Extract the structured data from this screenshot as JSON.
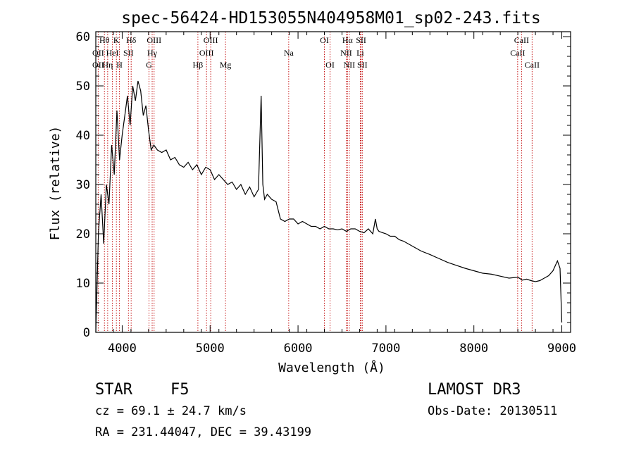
{
  "chart_data": {
    "type": "line",
    "title": "spec-56424-HD153055N404958M01_sp02-243.fits",
    "xlabel": "Wavelength (Å)",
    "ylabel": "Flux (relative)",
    "xlim": [
      3700,
      9100
    ],
    "ylim": [
      0,
      61
    ],
    "xticks": [
      4000,
      5000,
      6000,
      7000,
      8000,
      9000
    ],
    "yticks": [
      0,
      10,
      20,
      30,
      40,
      50,
      60
    ],
    "series": [
      {
        "name": "flux",
        "x": [
          3700,
          3730,
          3760,
          3790,
          3820,
          3850,
          3880,
          3910,
          3940,
          3970,
          4000,
          4030,
          4060,
          4090,
          4120,
          4150,
          4180,
          4210,
          4240,
          4270,
          4300,
          4330,
          4360,
          4400,
          4450,
          4500,
          4550,
          4600,
          4650,
          4700,
          4750,
          4800,
          4850,
          4900,
          4950,
          5000,
          5050,
          5100,
          5150,
          5200,
          5250,
          5300,
          5350,
          5400,
          5450,
          5500,
          5550,
          5580,
          5600,
          5620,
          5650,
          5700,
          5750,
          5800,
          5850,
          5900,
          5950,
          6000,
          6050,
          6100,
          6150,
          6200,
          6250,
          6300,
          6350,
          6400,
          6450,
          6500,
          6550,
          6600,
          6650,
          6700,
          6750,
          6800,
          6850,
          6880,
          6900,
          6920,
          6950,
          7000,
          7050,
          7100,
          7150,
          7200,
          7300,
          7400,
          7500,
          7600,
          7700,
          7800,
          7900,
          8000,
          8100,
          8200,
          8300,
          8400,
          8500,
          8550,
          8600,
          8650,
          8700,
          8750,
          8800,
          8850,
          8900,
          8950,
          8980,
          9000
        ],
        "y": [
          0,
          20,
          28,
          18,
          30,
          26,
          38,
          32,
          45,
          35,
          40,
          44,
          48,
          42,
          50,
          47,
          51,
          49,
          44,
          46,
          41,
          37,
          38,
          37,
          36.5,
          37,
          35,
          35.5,
          34,
          33.5,
          34.5,
          33,
          34,
          32,
          33.5,
          33,
          31,
          32,
          31,
          30,
          30.5,
          29,
          30,
          28,
          29.5,
          27.5,
          29,
          48,
          30,
          27,
          28,
          27,
          26.5,
          23,
          22.5,
          23,
          23,
          22,
          22.5,
          22,
          21.5,
          21.5,
          21,
          21.5,
          21,
          21,
          20.8,
          21,
          20.5,
          21,
          21,
          20.5,
          20.2,
          21,
          20,
          23,
          21,
          20.5,
          20.3,
          20,
          19.5,
          19.5,
          18.8,
          18.5,
          17.5,
          16.5,
          15.8,
          15,
          14.2,
          13.6,
          13,
          12.5,
          12,
          11.8,
          11.4,
          11,
          11.2,
          10.6,
          10.8,
          10.5,
          10.3,
          10.5,
          11,
          11.5,
          12.5,
          14.5,
          13,
          2
        ]
      }
    ],
    "lines": [
      {
        "label": "Hθ",
        "wl": 3798,
        "row": 0
      },
      {
        "label": "OII",
        "wl": 3727,
        "row": 1
      },
      {
        "label": "OII",
        "wl": 3727,
        "row": 2
      },
      {
        "label": "Hη",
        "wl": 3835,
        "row": 2
      },
      {
        "label": "HeI",
        "wl": 3889,
        "row": 1
      },
      {
        "label": "K",
        "wl": 3934,
        "row": 0
      },
      {
        "label": "H",
        "wl": 3969,
        "row": 2
      },
      {
        "label": "SII",
        "wl": 4071,
        "row": 1
      },
      {
        "label": "Hδ",
        "wl": 4102,
        "row": 0
      },
      {
        "label": "G",
        "wl": 4305,
        "row": 2
      },
      {
        "label": "Hγ",
        "wl": 4341,
        "row": 1
      },
      {
        "label": "OIII",
        "wl": 4363,
        "row": 0
      },
      {
        "label": "Hβ",
        "wl": 4861,
        "row": 2
      },
      {
        "label": "OIII",
        "wl": 4959,
        "row": 1
      },
      {
        "label": "OIII",
        "wl": 5007,
        "row": 0
      },
      {
        "label": "Mg",
        "wl": 5175,
        "row": 2
      },
      {
        "label": "Na",
        "wl": 5894,
        "row": 1
      },
      {
        "label": "OI",
        "wl": 6300,
        "row": 0
      },
      {
        "label": "OI",
        "wl": 6364,
        "row": 2
      },
      {
        "label": "NII",
        "wl": 6548,
        "row": 1
      },
      {
        "label": "Hα",
        "wl": 6563,
        "row": 0
      },
      {
        "label": "NII",
        "wl": 6583,
        "row": 2
      },
      {
        "label": "SII",
        "wl": 6717,
        "row": 0
      },
      {
        "label": "Li",
        "wl": 6708,
        "row": 1
      },
      {
        "label": "SII",
        "wl": 6731,
        "row": 2
      },
      {
        "label": "CaII",
        "wl": 8498,
        "row": 1
      },
      {
        "label": "CaII",
        "wl": 8542,
        "row": 0
      },
      {
        "label": "CaII",
        "wl": 8662,
        "row": 2
      }
    ]
  },
  "info": {
    "class": "STAR",
    "subclass": "F5",
    "survey": "LAMOST DR3",
    "cz": "cz = 69.1 ± 24.7 km/s",
    "obs_date": "Obs-Date: 20130511",
    "coords": "RA = 231.44047, DEC =  39.43199"
  }
}
